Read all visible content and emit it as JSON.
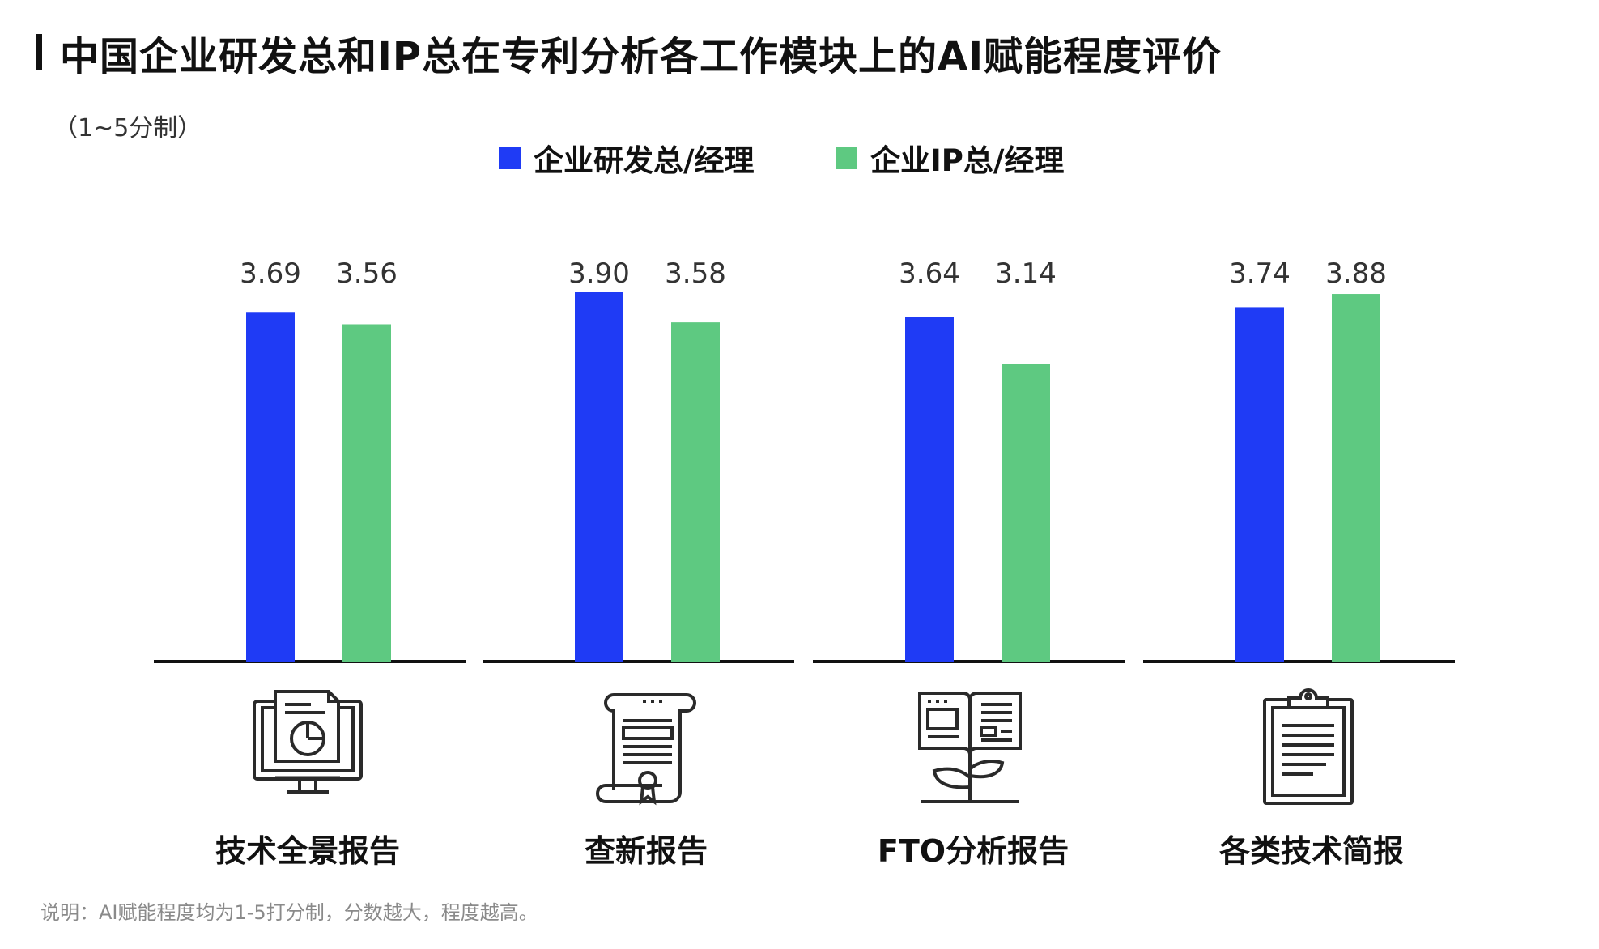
{
  "header": {
    "title": "中国企业研发总和IP总在专利分析各工作模块上的AI赋能程度评价",
    "unit_note": "（1~5分制）"
  },
  "legend": [
    {
      "label": "企业研发总/经理",
      "color": "#1f3bf5"
    },
    {
      "label": "企业IP总/经理",
      "color": "#5ec981"
    }
  ],
  "chart_data": {
    "type": "bar",
    "categories": [
      "技术全景报告",
      "查新报告",
      "FTO分析报告",
      "各类技术简报"
    ],
    "series": [
      {
        "name": "企业研发总/经理",
        "values": [
          3.69,
          3.9,
          3.64,
          3.74
        ],
        "color": "#1f3bf5"
      },
      {
        "name": "企业IP总/经理",
        "values": [
          3.56,
          3.58,
          3.14,
          3.88
        ],
        "color": "#5ec981"
      }
    ],
    "value_labels": [
      [
        "3.69",
        "3.56"
      ],
      [
        "3.90",
        "3.58"
      ],
      [
        "3.64",
        "3.14"
      ],
      [
        "3.74",
        "3.88"
      ]
    ],
    "ylim": [
      0,
      5
    ],
    "grid": false,
    "legend_position": "top-center"
  },
  "icons": [
    "monitor-report-icon",
    "scroll-certificate-icon",
    "book-plant-icon",
    "clipboard-icon"
  ],
  "footnote": "说明：AI赋能程度均为1-5打分制，分数越大，程度越高。"
}
